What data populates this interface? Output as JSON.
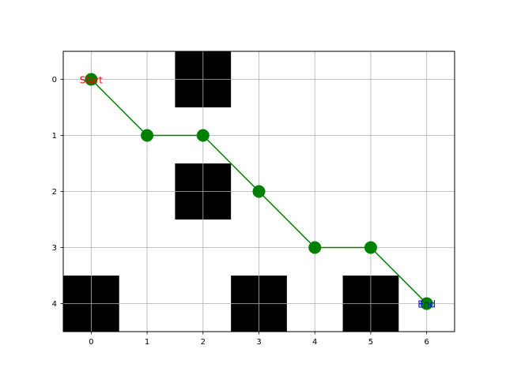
{
  "chart_data": {
    "type": "line",
    "title": "",
    "xlabel": "",
    "ylabel": "",
    "xlim": [
      -0.5,
      6.5
    ],
    "ylim": [
      4.5,
      -0.5
    ],
    "y_inverted": true,
    "grid": true,
    "x_ticks": [
      "0",
      "1",
      "2",
      "3",
      "4",
      "5",
      "6"
    ],
    "y_ticks": [
      "0",
      "1",
      "2",
      "3",
      "4"
    ],
    "obstacles": [
      {
        "col": 2,
        "row": 0
      },
      {
        "col": 2,
        "row": 2
      },
      {
        "col": 0,
        "row": 4
      },
      {
        "col": 3,
        "row": 4
      },
      {
        "col": 5,
        "row": 4
      }
    ],
    "obstacle_color": "#000000",
    "path": {
      "color": "#008000",
      "x": [
        0,
        1,
        2,
        3,
        4,
        5,
        6
      ],
      "y": [
        0,
        1,
        1,
        2,
        3,
        3,
        4
      ]
    },
    "annotations": [
      {
        "text": "Start",
        "x": 0,
        "y": 0,
        "color": "#ff0000"
      },
      {
        "text": "End",
        "x": 6,
        "y": 4,
        "color": "#0000ff"
      }
    ]
  }
}
